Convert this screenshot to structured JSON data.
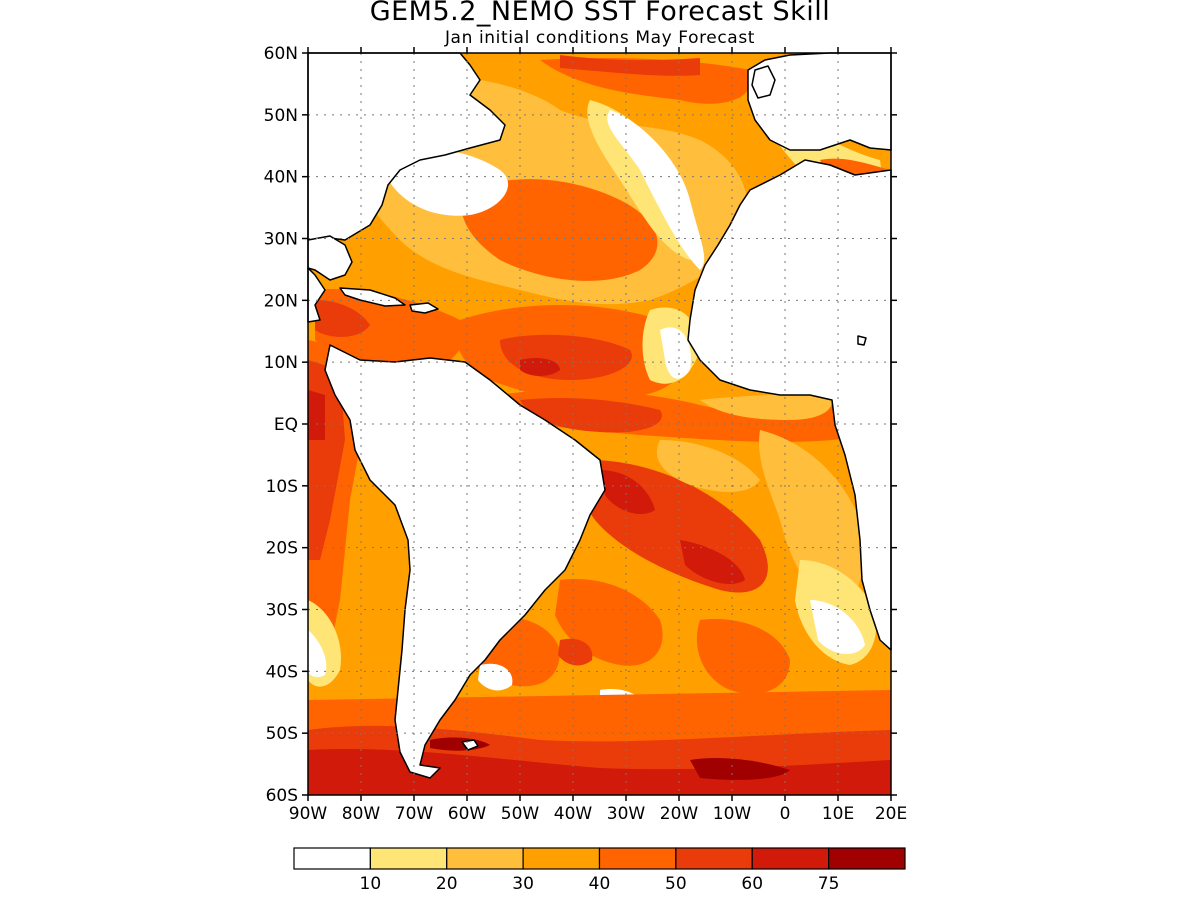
{
  "title": "GEM5.2_NEMO SST Forecast Skill",
  "subtitle": "Jan initial conditions   May Forecast",
  "map": {
    "region": "Atlantic Ocean",
    "lon_range": [
      -90,
      20
    ],
    "lat_range": [
      -60,
      60
    ],
    "lat_labels": [
      "60N",
      "50N",
      "40N",
      "30N",
      "20N",
      "10N",
      "EQ",
      "10S",
      "20S",
      "30S",
      "40S",
      "50S",
      "60S"
    ],
    "lon_labels": [
      "90W",
      "80W",
      "70W",
      "60W",
      "50W",
      "40W",
      "30W",
      "20W",
      "10W",
      "0",
      "10E",
      "20E"
    ],
    "grid": true
  },
  "colorbar": {
    "levels": [
      "10",
      "20",
      "30",
      "40",
      "50",
      "60",
      "75"
    ],
    "colors": [
      "#ffffff",
      "#ffe476",
      "#ffbe3c",
      "#ffa000",
      "#ff6400",
      "#e93c0a",
      "#d21a0a",
      "#a00000"
    ]
  }
}
